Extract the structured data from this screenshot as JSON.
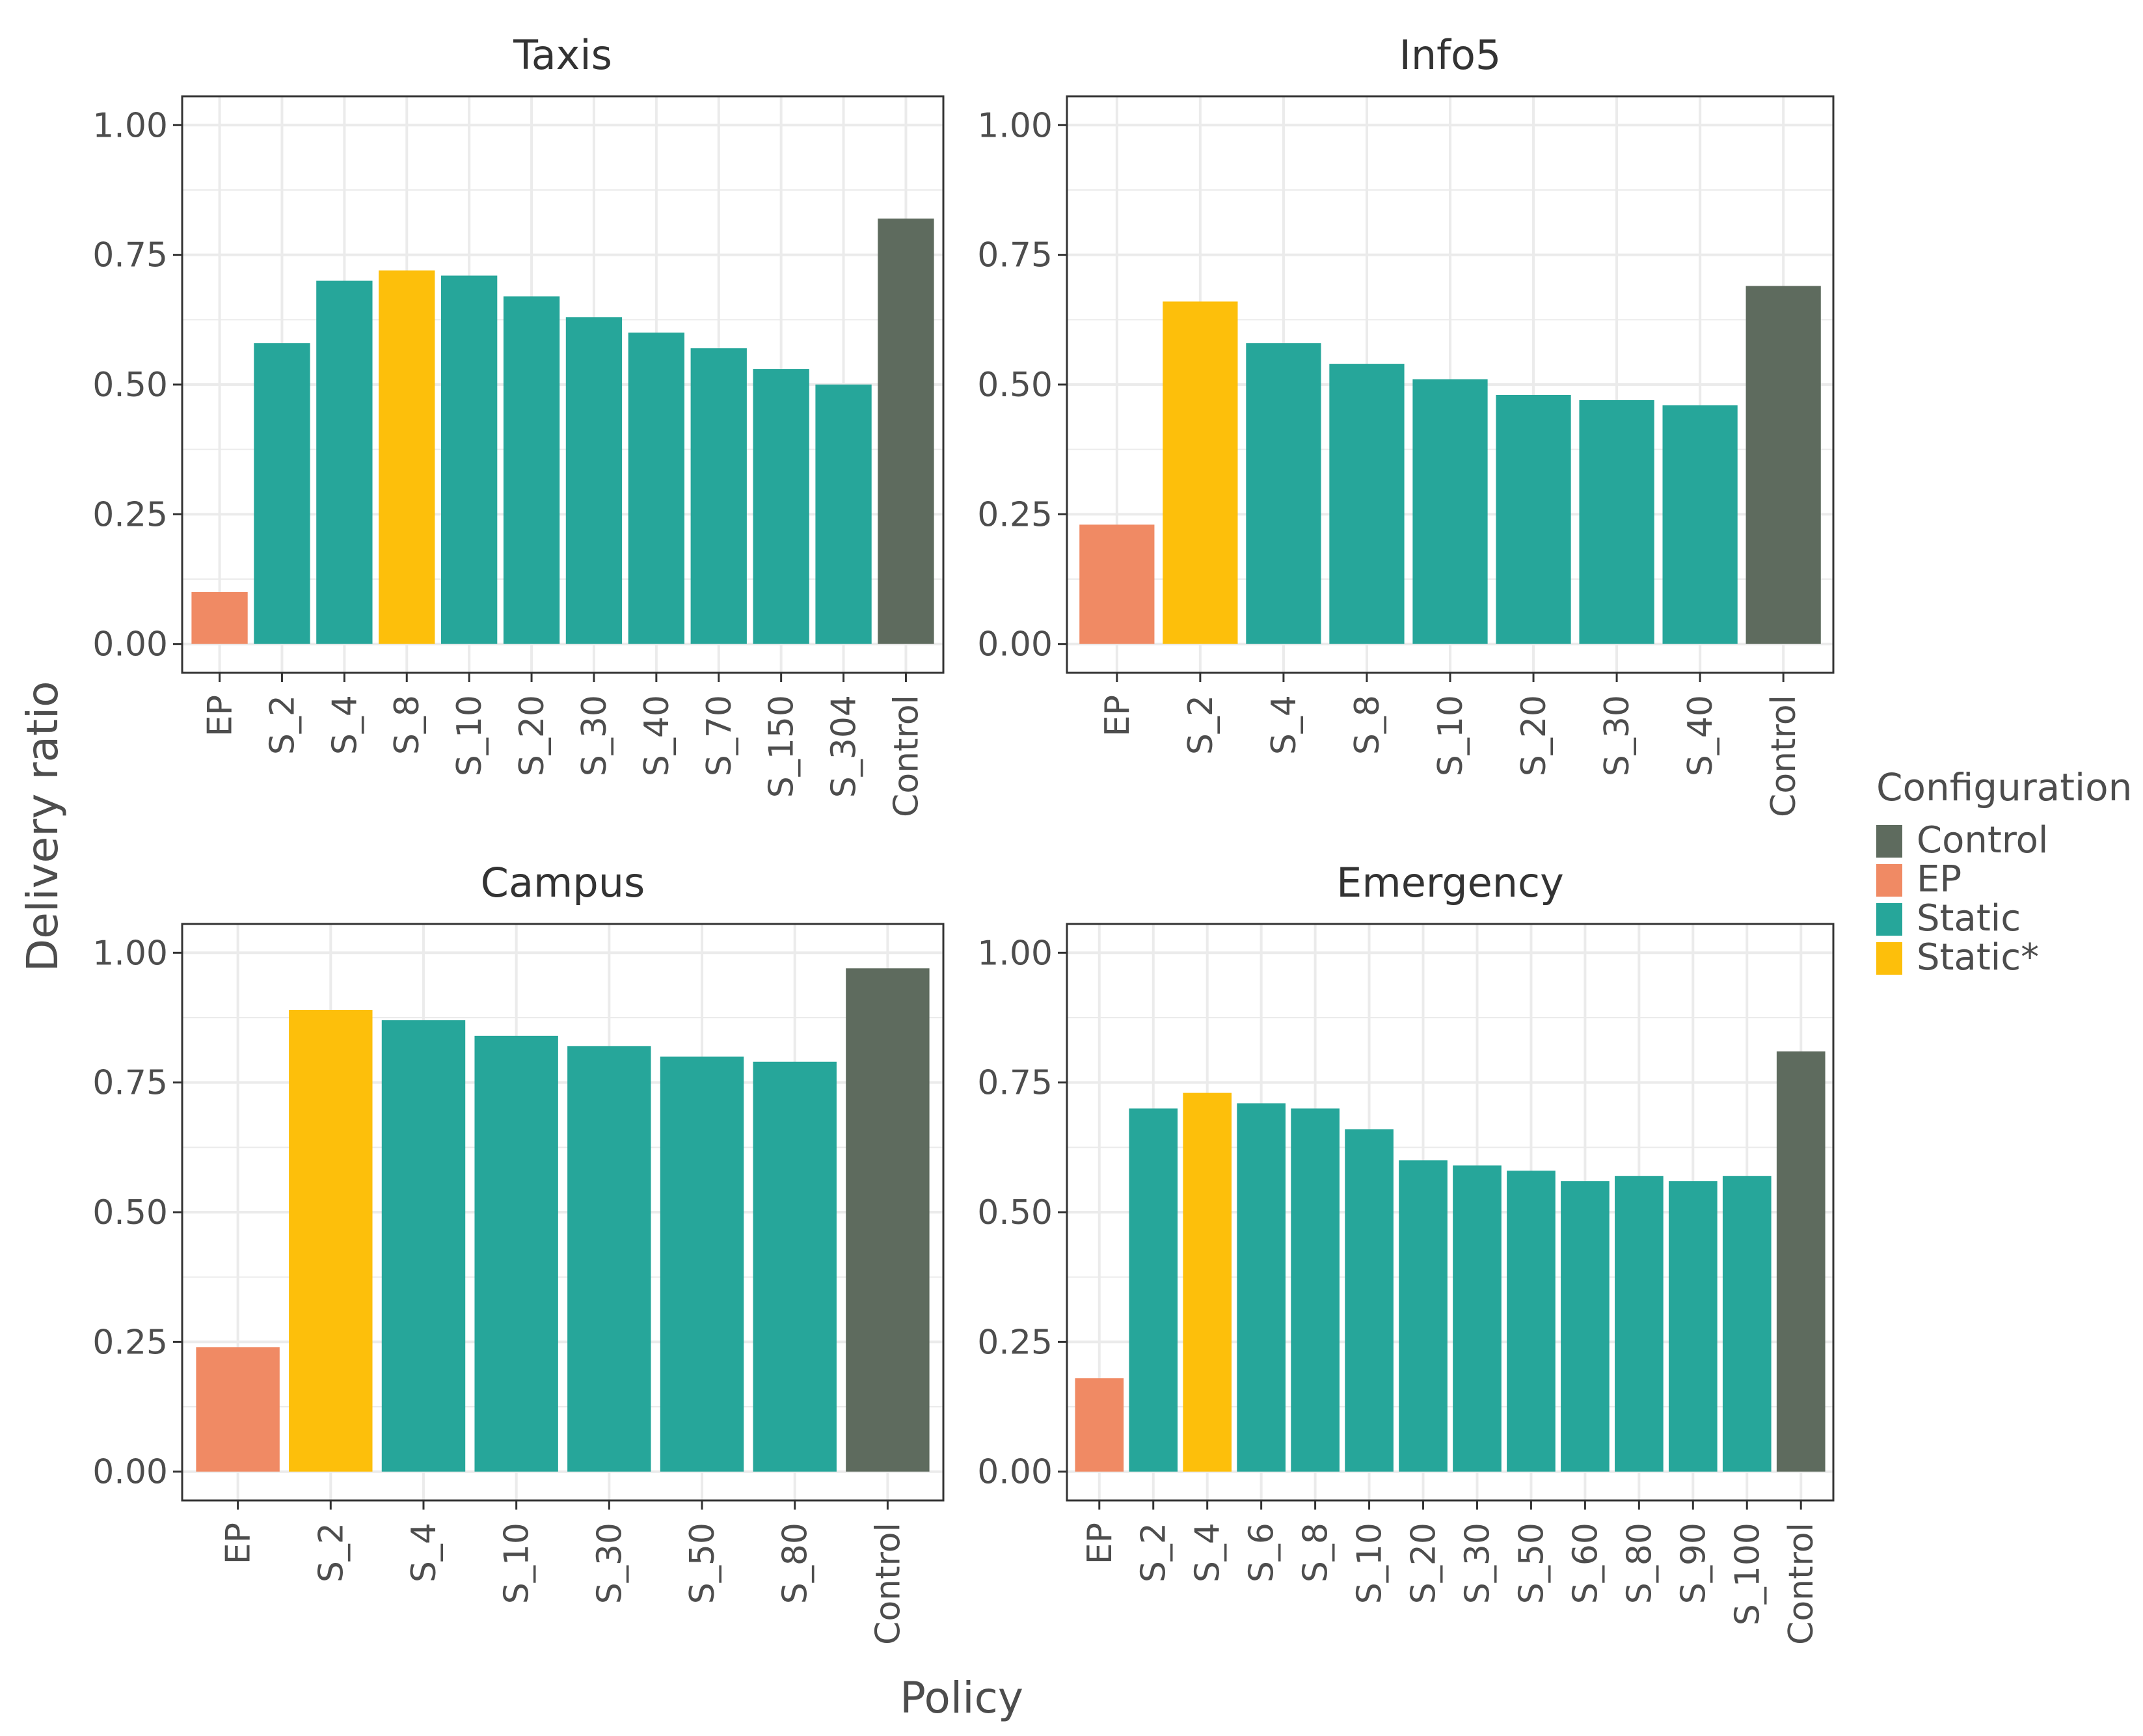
{
  "figure": {
    "xlabel": "Policy",
    "ylabel": "Delivery ratio"
  },
  "colors": {
    "Control": "#5e6b5e",
    "EP": "#f08a64",
    "Static": "#26a69a",
    "Static*": "#fdbf0b",
    "grid": "#ebebeb",
    "frame": "#333333"
  },
  "legend": {
    "title": "Configuration",
    "items": [
      {
        "label": "Control",
        "key": "Control"
      },
      {
        "label": "EP",
        "key": "EP"
      },
      {
        "label": "Static",
        "key": "Static"
      },
      {
        "label": "Static*",
        "key": "Static*"
      }
    ]
  },
  "chart_data": [
    {
      "type": "bar",
      "title": "Taxis",
      "categories": [
        "EP",
        "S_2",
        "S_4",
        "S_8",
        "S_10",
        "S_20",
        "S_30",
        "S_40",
        "S_70",
        "S_150",
        "S_304",
        "Control"
      ],
      "values": [
        0.1,
        0.58,
        0.7,
        0.72,
        0.71,
        0.67,
        0.63,
        0.6,
        0.57,
        0.53,
        0.5,
        0.82
      ],
      "config": [
        "EP",
        "Static",
        "Static",
        "Static*",
        "Static",
        "Static",
        "Static",
        "Static",
        "Static",
        "Static",
        "Static",
        "Control"
      ],
      "ylim": [
        0,
        1
      ],
      "yticks": [
        "0.00",
        "0.25",
        "0.50",
        "0.75",
        "1.00"
      ],
      "yticks_values": [
        0,
        0.25,
        0.5,
        0.75,
        1.0
      ]
    },
    {
      "type": "bar",
      "title": "Info5",
      "categories": [
        "EP",
        "S_2",
        "S_4",
        "S_8",
        "S_10",
        "S_20",
        "S_30",
        "S_40",
        "Control"
      ],
      "values": [
        0.23,
        0.66,
        0.58,
        0.54,
        0.51,
        0.48,
        0.47,
        0.46,
        0.69
      ],
      "config": [
        "EP",
        "Static*",
        "Static",
        "Static",
        "Static",
        "Static",
        "Static",
        "Static",
        "Control"
      ],
      "ylim": [
        0,
        1
      ],
      "yticks": [
        "0.00",
        "0.25",
        "0.50",
        "0.75",
        "1.00"
      ],
      "yticks_values": [
        0,
        0.25,
        0.5,
        0.75,
        1.0
      ]
    },
    {
      "type": "bar",
      "title": "Campus",
      "categories": [
        "EP",
        "S_2",
        "S_4",
        "S_10",
        "S_30",
        "S_50",
        "S_80",
        "Control"
      ],
      "values": [
        0.24,
        0.89,
        0.87,
        0.84,
        0.82,
        0.8,
        0.79,
        0.97
      ],
      "config": [
        "EP",
        "Static*",
        "Static",
        "Static",
        "Static",
        "Static",
        "Static",
        "Control"
      ],
      "ylim": [
        0,
        1
      ],
      "yticks": [
        "0.00",
        "0.25",
        "0.50",
        "0.75",
        "1.00"
      ],
      "yticks_values": [
        0,
        0.25,
        0.5,
        0.75,
        1.0
      ]
    },
    {
      "type": "bar",
      "title": "Emergency",
      "categories": [
        "EP",
        "S_2",
        "S_4",
        "S_6",
        "S_8",
        "S_10",
        "S_20",
        "S_30",
        "S_50",
        "S_60",
        "S_80",
        "S_90",
        "S_100",
        "Control"
      ],
      "values": [
        0.18,
        0.7,
        0.73,
        0.71,
        0.7,
        0.66,
        0.6,
        0.59,
        0.58,
        0.56,
        0.57,
        0.56,
        0.57,
        0.81
      ],
      "config": [
        "EP",
        "Static",
        "Static*",
        "Static",
        "Static",
        "Static",
        "Static",
        "Static",
        "Static",
        "Static",
        "Static",
        "Static",
        "Static",
        "Control"
      ],
      "ylim": [
        0,
        1
      ],
      "yticks": [
        "0.00",
        "0.25",
        "0.50",
        "0.75",
        "1.00"
      ],
      "yticks_values": [
        0,
        0.25,
        0.5,
        0.75,
        1.0
      ]
    }
  ]
}
